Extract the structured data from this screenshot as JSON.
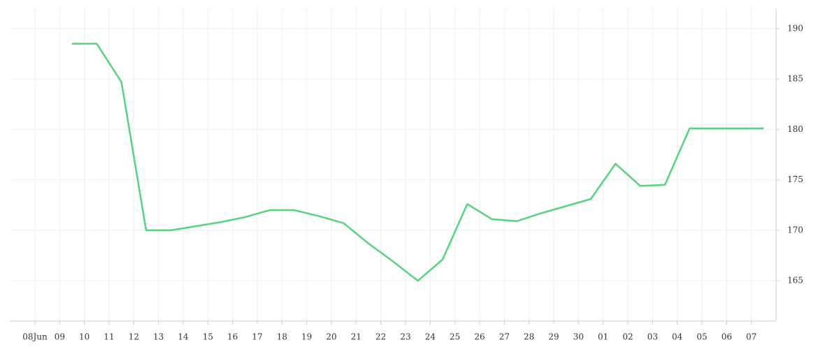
{
  "chart_data": {
    "type": "line",
    "categories": [
      "08Jun",
      "09",
      "10",
      "11",
      "12",
      "13",
      "14",
      "15",
      "16",
      "17",
      "18",
      "19",
      "20",
      "21",
      "22",
      "23",
      "24",
      "25",
      "26",
      "27",
      "28",
      "29",
      "30",
      "01",
      "02",
      "03",
      "04",
      "05",
      "06",
      "07"
    ],
    "series": [
      {
        "color": "#56d37f",
        "values": [
          null,
          188.5,
          188.5,
          184.7,
          170.0,
          170.0,
          170.4,
          170.8,
          171.3,
          172.0,
          172.0,
          171.4,
          170.7,
          168.7,
          166.9,
          165.0,
          167.1,
          172.6,
          171.1,
          170.9,
          171.7,
          172.4,
          173.1,
          176.6,
          174.4,
          174.5,
          180.1,
          180.1,
          180.1,
          180.1
        ]
      }
    ],
    "ylim": [
      161,
      192
    ],
    "yticks": [
      165,
      170,
      175,
      180,
      185,
      190
    ],
    "grid": true
  }
}
